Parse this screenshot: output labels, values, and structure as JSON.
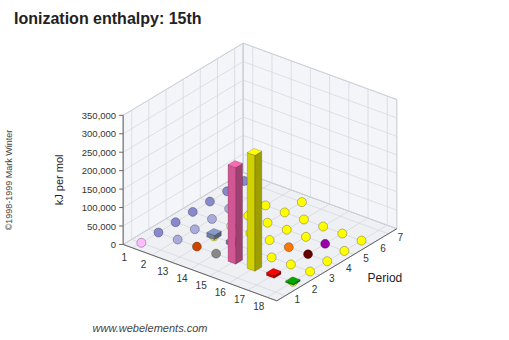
{
  "chart_data": {
    "type": "bar3d",
    "title": "Ionization enthalpy: 15th",
    "categories": [
      1,
      2,
      13,
      14,
      15,
      16,
      17,
      18
    ],
    "y_categories": [
      1,
      2,
      3,
      4,
      5,
      6,
      7
    ],
    "y_label": "Period",
    "z_label": "kJ per mol",
    "zlim": [
      0,
      350000
    ],
    "zticks": [
      0,
      {
        "value": 50000,
        "label": "50,000"
      },
      {
        "value": 100000,
        "label": "100,000"
      },
      {
        "value": 150000,
        "label": "150,000"
      },
      {
        "value": 200000,
        "label": "200,000"
      },
      {
        "value": 250000,
        "label": "250,000"
      },
      {
        "value": 300000,
        "label": "300,000"
      },
      {
        "value": 350000,
        "label": "350,000"
      }
    ],
    "bars": [
      {
        "x": 15,
        "y": 2,
        "value": 262000,
        "color": "#ff69b4"
      },
      {
        "x": 16,
        "y": 2,
        "value": 314000,
        "color": "#ffff00"
      },
      {
        "x": 17,
        "y": 2,
        "value": 8000,
        "color": "#ff0000"
      },
      {
        "x": 18,
        "y": 2,
        "value": 4000,
        "color": "#00aa00"
      },
      {
        "x": 13,
        "y": 3,
        "value": 12000,
        "color": "#8899cc"
      },
      {
        "x": 14,
        "y": 3,
        "value": 10000,
        "color": "#8899cc"
      }
    ],
    "dots": [
      {
        "x": 1,
        "y": 1,
        "color": "#ffbbff"
      },
      {
        "x": 1,
        "y": 2,
        "color": "#8888cc"
      },
      {
        "x": 2,
        "y": 2,
        "color": "#aaaadd"
      },
      {
        "x": 13,
        "y": 2,
        "color": "#cc4400"
      },
      {
        "x": 14,
        "y": 2,
        "color": "#888888"
      },
      {
        "x": 18,
        "y": 2,
        "color": "#ffff00"
      },
      {
        "x": 1,
        "y": 3,
        "color": "#8888cc"
      },
      {
        "x": 2,
        "y": 3,
        "color": "#aaaadd"
      },
      {
        "x": 13,
        "y": 3,
        "color": "#ffff00"
      },
      {
        "x": 14,
        "y": 3,
        "color": "#ffff00"
      },
      {
        "x": 15,
        "y": 3,
        "color": "#ffff00"
      },
      {
        "x": 16,
        "y": 3,
        "color": "#ffff00"
      },
      {
        "x": 17,
        "y": 3,
        "color": "#ffff00"
      },
      {
        "x": 18,
        "y": 3,
        "color": "#ffff00"
      },
      {
        "x": 1,
        "y": 4,
        "color": "#8888cc"
      },
      {
        "x": 2,
        "y": 4,
        "color": "#aaaadd"
      },
      {
        "x": 13,
        "y": 4,
        "color": "#ffff00"
      },
      {
        "x": 14,
        "y": 4,
        "color": "#ffff00"
      },
      {
        "x": 15,
        "y": 4,
        "color": "#ffff00"
      },
      {
        "x": 16,
        "y": 4,
        "color": "#ff7700"
      },
      {
        "x": 17,
        "y": 4,
        "color": "#660000"
      },
      {
        "x": 18,
        "y": 4,
        "color": "#ffff00"
      },
      {
        "x": 1,
        "y": 5,
        "color": "#8888cc"
      },
      {
        "x": 2,
        "y": 5,
        "color": "#aaaadd"
      },
      {
        "x": 13,
        "y": 5,
        "color": "#ffff00"
      },
      {
        "x": 14,
        "y": 5,
        "color": "#ffff00"
      },
      {
        "x": 15,
        "y": 5,
        "color": "#ffff00"
      },
      {
        "x": 16,
        "y": 5,
        "color": "#ffff00"
      },
      {
        "x": 17,
        "y": 5,
        "color": "#9900aa"
      },
      {
        "x": 18,
        "y": 5,
        "color": "#ffff00"
      },
      {
        "x": 1,
        "y": 6,
        "color": "#8888cc"
      },
      {
        "x": 13,
        "y": 6,
        "color": "#ffff00"
      },
      {
        "x": 14,
        "y": 6,
        "color": "#ffff00"
      },
      {
        "x": 15,
        "y": 6,
        "color": "#ffff00"
      },
      {
        "x": 16,
        "y": 6,
        "color": "#ffff00"
      },
      {
        "x": 17,
        "y": 6,
        "color": "#ffff00"
      },
      {
        "x": 18,
        "y": 6,
        "color": "#ffff00"
      },
      {
        "x": 1,
        "y": 7,
        "color": "#8888cc"
      },
      {
        "x": 14,
        "y": 7,
        "color": "#ffff00"
      }
    ],
    "annotations": [
      "www.webelements.com",
      "©1998-1999 Mark Winter"
    ]
  }
}
